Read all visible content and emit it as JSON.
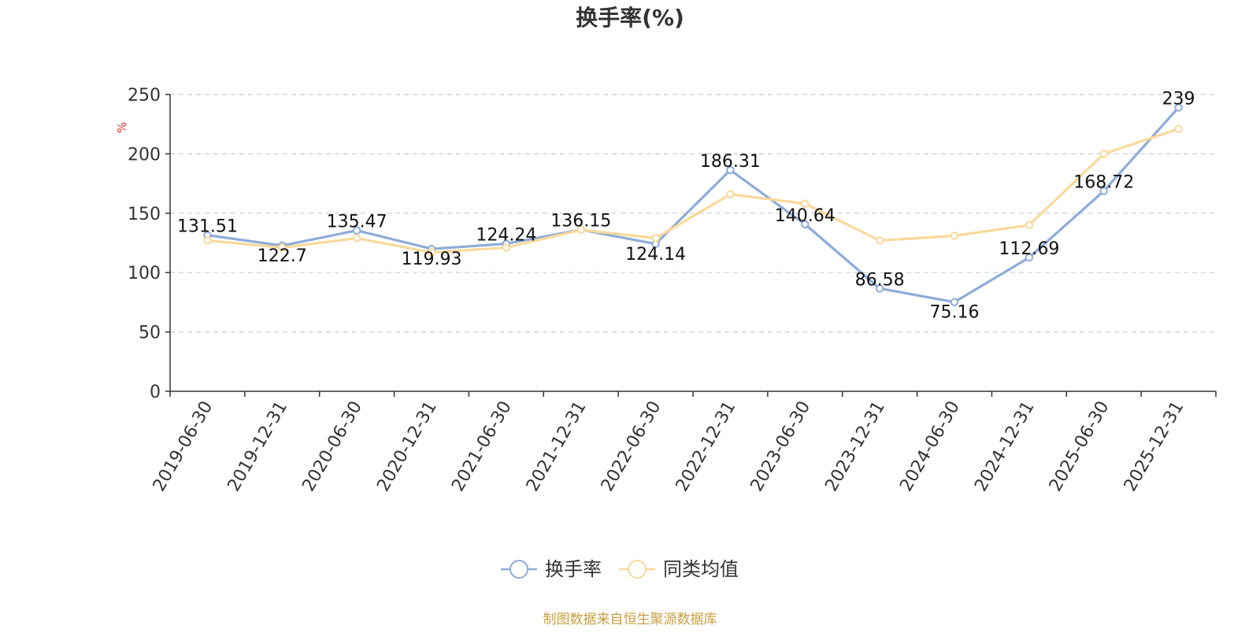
{
  "chart_data": {
    "type": "line",
    "title": "换手率(%)",
    "ylabel": "%",
    "xlabel": "",
    "ylim": [
      0,
      250
    ],
    "yticks": [
      0,
      50,
      100,
      150,
      200,
      250
    ],
    "grid": true,
    "legend_position": "bottom-center",
    "categories": [
      "2019-06-30",
      "2019-12-31",
      "2020-06-30",
      "2020-12-31",
      "2021-06-30",
      "2021-12-31",
      "2022-06-30",
      "2022-12-31",
      "2023-06-30",
      "2023-12-31",
      "2024-06-30",
      "2024-12-31",
      "2025-06-30",
      "2025-12-31"
    ],
    "series": [
      {
        "name": "换手率",
        "color": "#8eacd9",
        "values": [
          131.51,
          122.7,
          135.47,
          119.93,
          124.24,
          136.15,
          124.14,
          186.31,
          140.64,
          86.58,
          75.16,
          112.69,
          168.72,
          239
        ],
        "labels": [
          "131.51",
          "122.7",
          "135.47",
          "119.93",
          "124.24",
          "136.15",
          "124.14",
          "186.31",
          "140.64",
          "86.58",
          "75.16",
          "112.69",
          "168.72",
          "239"
        ]
      },
      {
        "name": "同类均值",
        "color": "#f9d99a",
        "values": [
          127,
          121,
          129,
          117,
          121,
          136,
          129,
          166,
          158,
          127,
          131,
          140,
          200,
          221
        ]
      }
    ],
    "source": "制图数据来自恒生聚源数据库",
    "colors": {
      "axis": "#333333",
      "grid": "#cccccc",
      "unit": "#e03030",
      "source": "#c8a040"
    }
  }
}
